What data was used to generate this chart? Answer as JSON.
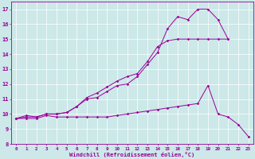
{
  "xlabel": "Windchill (Refroidissement éolien,°C)",
  "xlim": [
    -0.5,
    23.5
  ],
  "ylim": [
    8,
    17.5
  ],
  "background_color": "#cce8e8",
  "line_color": "#990099",
  "grid_color": "#ffffff",
  "line1_x": [
    0,
    1,
    2,
    3,
    4,
    5,
    6,
    7,
    8,
    9,
    10,
    11,
    12,
    13,
    14,
    15,
    16,
    17,
    18,
    19,
    20,
    21
  ],
  "line1_y": [
    9.7,
    9.9,
    9.8,
    10.0,
    10.0,
    10.1,
    10.5,
    11.0,
    11.1,
    11.5,
    11.9,
    12.0,
    12.5,
    13.3,
    14.1,
    15.7,
    16.5,
    16.3,
    17.0,
    17.0,
    16.3,
    15.0
  ],
  "line2_x": [
    0,
    1,
    2,
    3,
    4,
    5,
    6,
    7,
    8,
    9,
    10,
    11,
    12,
    13,
    14,
    15,
    16,
    17,
    18,
    19,
    20,
    21
  ],
  "line2_y": [
    9.7,
    9.8,
    9.8,
    10.0,
    10.0,
    10.1,
    10.5,
    11.1,
    11.4,
    11.8,
    12.2,
    12.5,
    12.7,
    13.5,
    14.5,
    14.9,
    15.0,
    15.0,
    15.0,
    15.0,
    15.0,
    15.0
  ],
  "line3_x": [
    0,
    1,
    2,
    3,
    4,
    5,
    6,
    7,
    8,
    9,
    10,
    11,
    12,
    13,
    14,
    15,
    16,
    17,
    18,
    19,
    20,
    21,
    22,
    23
  ],
  "line3_y": [
    9.7,
    9.7,
    9.7,
    9.9,
    9.8,
    9.8,
    9.8,
    9.8,
    9.8,
    9.8,
    9.9,
    10.0,
    10.1,
    10.2,
    10.3,
    10.4,
    10.5,
    10.6,
    10.7,
    11.9,
    10.0,
    9.8,
    9.3,
    8.5
  ]
}
